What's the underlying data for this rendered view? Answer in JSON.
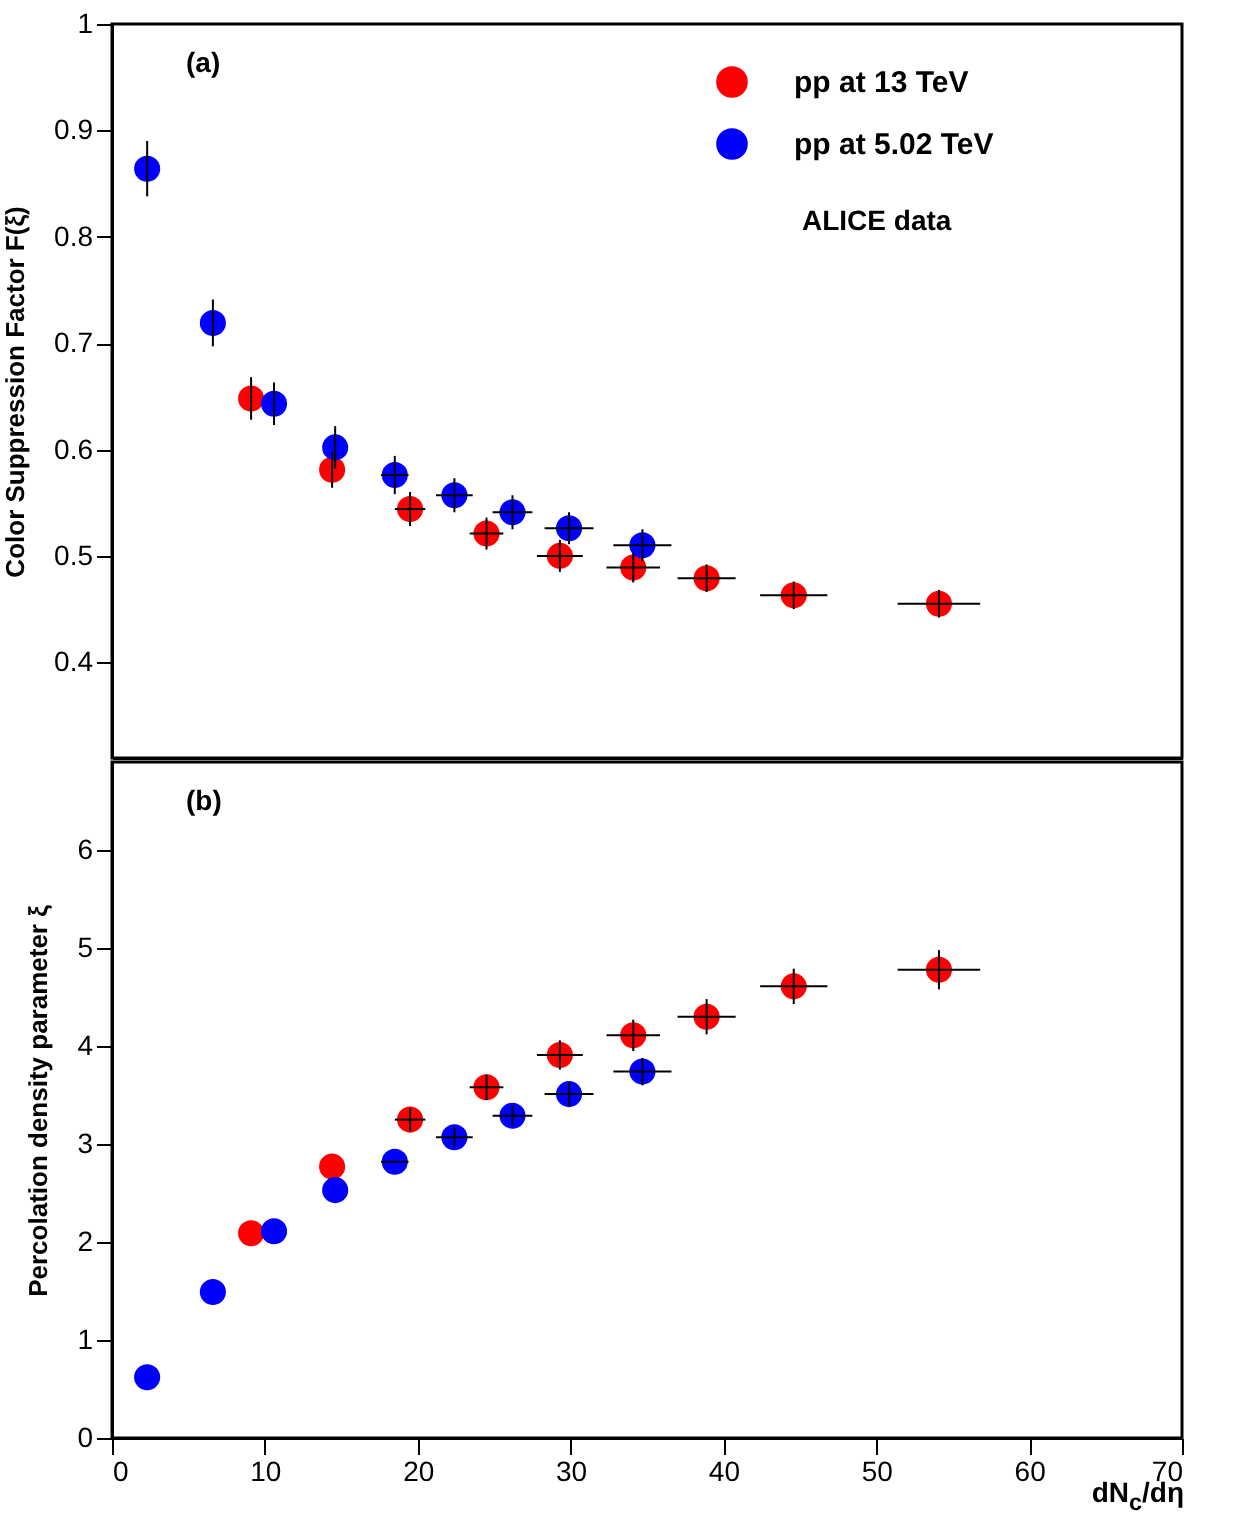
{
  "chart_data": [
    {
      "type": "scatter",
      "ylabel": "Color Suppression Factor F(ξ)",
      "annotations": [
        "(a)",
        "ALICE data"
      ],
      "xlim": [
        0,
        70
      ],
      "xticks": [
        0,
        10,
        20,
        30,
        40,
        50,
        60,
        70
      ],
      "ylim": [
        0.31,
        1
      ],
      "yticks": [
        0.4,
        0.5,
        0.6,
        0.7,
        0.8,
        0.9,
        1
      ],
      "tick_labels": "y",
      "legend": "top right",
      "marker": "circle",
      "series": [
        {
          "name": "pp at 13 TeV",
          "color": "#ff0000",
          "x": [
            9.1,
            14.4,
            19.5,
            24.5,
            29.3,
            34.1,
            38.9,
            44.6,
            54.1
          ],
          "values": [
            0.648,
            0.581,
            0.544,
            0.521,
            0.5,
            0.489,
            0.479,
            0.463,
            0.455
          ],
          "errors": [
            0.02,
            0.017,
            0.016,
            0.015,
            0.015,
            0.014,
            0.013,
            0.013,
            0.013
          ],
          "xerrors": [
            null,
            null,
            1,
            1.1,
            1.5,
            1.75,
            1.9,
            2.2,
            2.7
          ]
        },
        {
          "name": "pp at 5.02 TeV",
          "color": "#0000ff",
          "x": [
            2.3,
            6.6,
            10.6,
            14.6,
            18.5,
            22.4,
            26.2,
            29.9,
            34.7
          ],
          "values": [
            0.864,
            0.719,
            0.643,
            0.602,
            0.576,
            0.557,
            0.541,
            0.526,
            0.51
          ],
          "errors": [
            0.026,
            0.022,
            0.02,
            0.02,
            0.018,
            0.016,
            0.016,
            0.015,
            0.015
          ],
          "xerrors": [
            null,
            null,
            null,
            null,
            0.9,
            1.2,
            1.3,
            1.6,
            1.9
          ]
        }
      ]
    },
    {
      "type": "scatter",
      "xlabel": "dN$_{c}$/dη",
      "ylabel": "Percolation density parameter  ξ",
      "annotations": [
        "(b)"
      ],
      "xlim": [
        0,
        70
      ],
      "xticks": [
        0,
        10,
        20,
        30,
        40,
        50,
        60,
        70
      ],
      "ylim": [
        0,
        6.9
      ],
      "yticks": [
        0,
        1,
        2,
        3,
        4,
        5,
        6
      ],
      "marker": "circle",
      "series": [
        {
          "name": "pp at 13 TeV",
          "color": "#ff0000",
          "x": [
            9.1,
            14.4,
            19.5,
            24.5,
            29.3,
            34.1,
            38.9,
            44.6,
            54.1
          ],
          "values": [
            2.09,
            2.77,
            3.25,
            3.58,
            3.91,
            4.11,
            4.3,
            4.61,
            4.78
          ],
          "errors": [
            null,
            null,
            0.12,
            0.13,
            0.15,
            0.16,
            0.18,
            0.18,
            0.2
          ],
          "xerrors": [
            null,
            null,
            1,
            1.1,
            1.5,
            1.75,
            1.9,
            2.2,
            2.7
          ]
        },
        {
          "name": "pp at 5.02 TeV",
          "color": "#0000ff",
          "x": [
            2.3,
            6.6,
            10.6,
            14.6,
            18.5,
            22.4,
            26.2,
            29.9,
            34.7
          ],
          "values": [
            0.62,
            1.49,
            2.11,
            2.53,
            2.82,
            3.07,
            3.29,
            3.51,
            3.74
          ],
          "errors": [
            null,
            null,
            null,
            null,
            null,
            0.1,
            0.1,
            0.12,
            0.14
          ],
          "xerrors": [
            null,
            null,
            null,
            null,
            0.9,
            1.2,
            1.3,
            1.6,
            1.9
          ]
        }
      ]
    }
  ]
}
